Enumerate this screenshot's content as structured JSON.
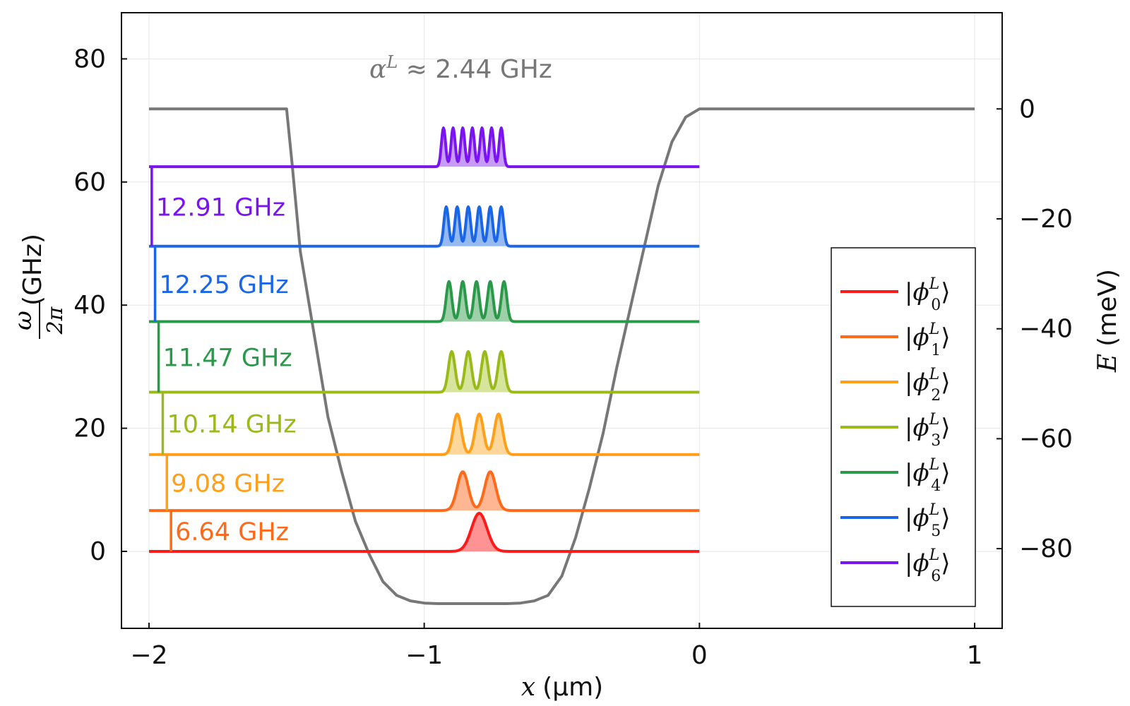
{
  "chart_data": {
    "type": "line",
    "xlabel_var": "x",
    "xlabel_unit": "(µm)",
    "ylabel_left_num": "ω",
    "ylabel_left_den": "2π",
    "ylabel_left_unit": "(GHz)",
    "ylabel_right_var": "E",
    "ylabel_right_unit": "(meV)",
    "xlim": [
      -2.1,
      1.1
    ],
    "ylim_left": [
      -12.5,
      87.5
    ],
    "ylim_right": [
      -94.5,
      17.5
    ],
    "x_ticks": [
      -2,
      -1,
      0,
      1
    ],
    "x_tick_labels": [
      "−2",
      "−1",
      "0",
      "1"
    ],
    "y_left_ticks": [
      0,
      20,
      40,
      60,
      80
    ],
    "y_left_tick_labels": [
      "0",
      "20",
      "40",
      "60",
      "80"
    ],
    "y_right_ticks": [
      0,
      -20,
      -40,
      -60,
      -80
    ],
    "y_right_tick_labels": [
      "0",
      "−20",
      "−40",
      "−60",
      "−80"
    ],
    "grid": true,
    "legend_position": "right",
    "annotation_prefix": "α",
    "annotation_sup": "L",
    "annotation_text": " ≈ 2.44 GHz",
    "potential": {
      "color": "#777777",
      "axis": "right",
      "x": [
        -2.0,
        -1.5,
        -1.48,
        -1.45,
        -1.4,
        -1.35,
        -1.3,
        -1.25,
        -1.2,
        -1.15,
        -1.1,
        -1.05,
        -1.0,
        -0.95,
        -0.9,
        -0.85,
        -0.8,
        -0.75,
        -0.7,
        -0.65,
        -0.6,
        -0.55,
        -0.5,
        -0.45,
        -0.4,
        -0.35,
        -0.3,
        -0.25,
        -0.2,
        -0.15,
        -0.1,
        -0.05,
        0.0,
        1.0
      ],
      "y": [
        0,
        0,
        -10,
        -26,
        -41,
        -56,
        -66,
        -75,
        -81,
        -86,
        -88.5,
        -89.5,
        -89.9,
        -90,
        -90,
        -90,
        -90,
        -90,
        -90,
        -89.9,
        -89.5,
        -88.5,
        -85,
        -78,
        -69,
        -59,
        -47,
        -36,
        -25,
        -14,
        -6,
        -1.5,
        0,
        0
      ]
    },
    "series": [
      {
        "name": "ϕ",
        "index": "0",
        "color": "#ff1a1a",
        "fill": "#ff8080",
        "baseline": 0,
        "peaks": [
          -0.8
        ],
        "amp": 6.2,
        "width": 0.028
      },
      {
        "name": "ϕ",
        "index": "1",
        "color": "#ff6a1a",
        "fill": "#ffaa80",
        "baseline": 6.64,
        "peaks": [
          -0.86,
          -0.76
        ],
        "amp": 6.3,
        "width": 0.02
      },
      {
        "name": "ϕ",
        "index": "2",
        "color": "#ff9f1a",
        "fill": "#ffd08a",
        "baseline": 15.72,
        "peaks": [
          -0.88,
          -0.8,
          -0.73
        ],
        "amp": 6.6,
        "width": 0.015
      },
      {
        "name": "ϕ",
        "index": "3",
        "color": "#9aba1a",
        "fill": "#cfe08a",
        "baseline": 25.86,
        "peaks": [
          -0.9,
          -0.84,
          -0.78,
          -0.72
        ],
        "amp": 6.6,
        "width": 0.012
      },
      {
        "name": "ϕ",
        "index": "4",
        "color": "#2a9a4a",
        "fill": "#8cc79a",
        "baseline": 37.33,
        "peaks": [
          -0.91,
          -0.86,
          -0.81,
          -0.76,
          -0.71
        ],
        "amp": 6.5,
        "width": 0.01
      },
      {
        "name": "ϕ",
        "index": "5",
        "color": "#1a66e6",
        "fill": "#82aef0",
        "baseline": 49.58,
        "peaks": [
          -0.92,
          -0.88,
          -0.84,
          -0.8,
          -0.76,
          -0.72
        ],
        "amp": 6.4,
        "width": 0.0085
      },
      {
        "name": "ϕ",
        "index": "6",
        "color": "#7a14f0",
        "fill": "#bd8af7",
        "baseline": 62.49,
        "peaks": [
          -0.93,
          -0.895,
          -0.86,
          -0.825,
          -0.79,
          -0.755,
          -0.72
        ],
        "amp": 6.3,
        "width": 0.0075
      }
    ],
    "transitions": [
      {
        "label": "6.64 GHz",
        "color": "#ff6a1a",
        "x": -1.92,
        "from": 0,
        "to": 6.64
      },
      {
        "label": "9.08 GHz",
        "color": "#ff9f1a",
        "x": -1.935,
        "from": 6.64,
        "to": 15.72
      },
      {
        "label": "10.14 GHz",
        "color": "#9aba1a",
        "x": -1.95,
        "from": 15.72,
        "to": 25.86
      },
      {
        "label": "11.47 GHz",
        "color": "#2a9a4a",
        "x": -1.965,
        "from": 25.86,
        "to": 37.33
      },
      {
        "label": "12.25 GHz",
        "color": "#1a66e6",
        "x": -1.978,
        "from": 37.33,
        "to": 49.58
      },
      {
        "label": "12.91 GHz",
        "color": "#7a14f0",
        "x": -1.99,
        "from": 49.58,
        "to": 62.49
      }
    ]
  }
}
